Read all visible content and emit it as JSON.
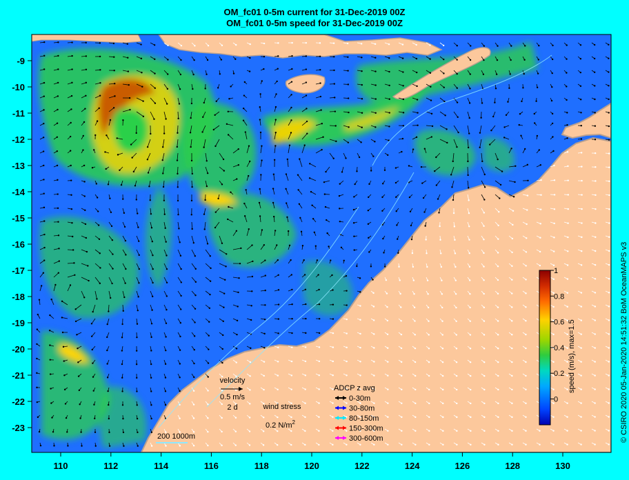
{
  "title_line1": "OM_fc01 0-5m current for 31-Dec-2019 00Z",
  "title_line2": "OM_fc01 0-5m speed for 31-Dec-2019 00Z",
  "map": {
    "lon_range": [
      109,
      132
    ],
    "lat_range": [
      -24,
      -8
    ],
    "x_ticks": [
      "110",
      "112",
      "114",
      "116",
      "118",
      "120",
      "122",
      "124",
      "126",
      "128",
      "130"
    ],
    "y_ticks": [
      "-9",
      "-10",
      "-11",
      "-12",
      "-13",
      "-14",
      "-15",
      "-16",
      "-17",
      "-18",
      "-19",
      "-20",
      "-21",
      "-22",
      "-23"
    ],
    "colors": {
      "land": "#fcc89c",
      "coast_border": "#b8a090",
      "ocean_low": "#1f6fff",
      "ocean_mid": "#2cd04a",
      "ocean_high": "#ffd400",
      "ocean_peak": "#c85000"
    }
  },
  "colorbar": {
    "ticks": [
      "1",
      "0.8",
      "0.6",
      "0.4",
      "0.2",
      "0"
    ],
    "label": "speed (m/s), max=1.5",
    "colors": [
      "#8b0000",
      "#d12b00",
      "#ff6a00",
      "#ffd200",
      "#9cd600",
      "#1fc43c",
      "#00b7c8",
      "#1b74ff",
      "#0000b0"
    ]
  },
  "legend": {
    "velocity_title": "velocity",
    "velocity_scale": "0.5 m/s",
    "velocity_days": "2 d",
    "wind_title": "wind stress",
    "wind_value": "0.2 N/m",
    "wind_exp": "2",
    "adcp_title": "ADCP z avg",
    "adcp_items": [
      {
        "label": "0-30m",
        "color": "#000000"
      },
      {
        "label": "30-80m",
        "color": "#0000ff"
      },
      {
        "label": "80-150m",
        "color": "#00e8ff"
      },
      {
        "label": "150-300m",
        "color": "#ff0000"
      },
      {
        "label": "300-600m",
        "color": "#ff00ff"
      }
    ],
    "scale_bar": "200   1000m"
  },
  "credit": "© CSIRO 2020  05-Jan-2020 14:51:32 BoM OceanMAPS v3"
}
